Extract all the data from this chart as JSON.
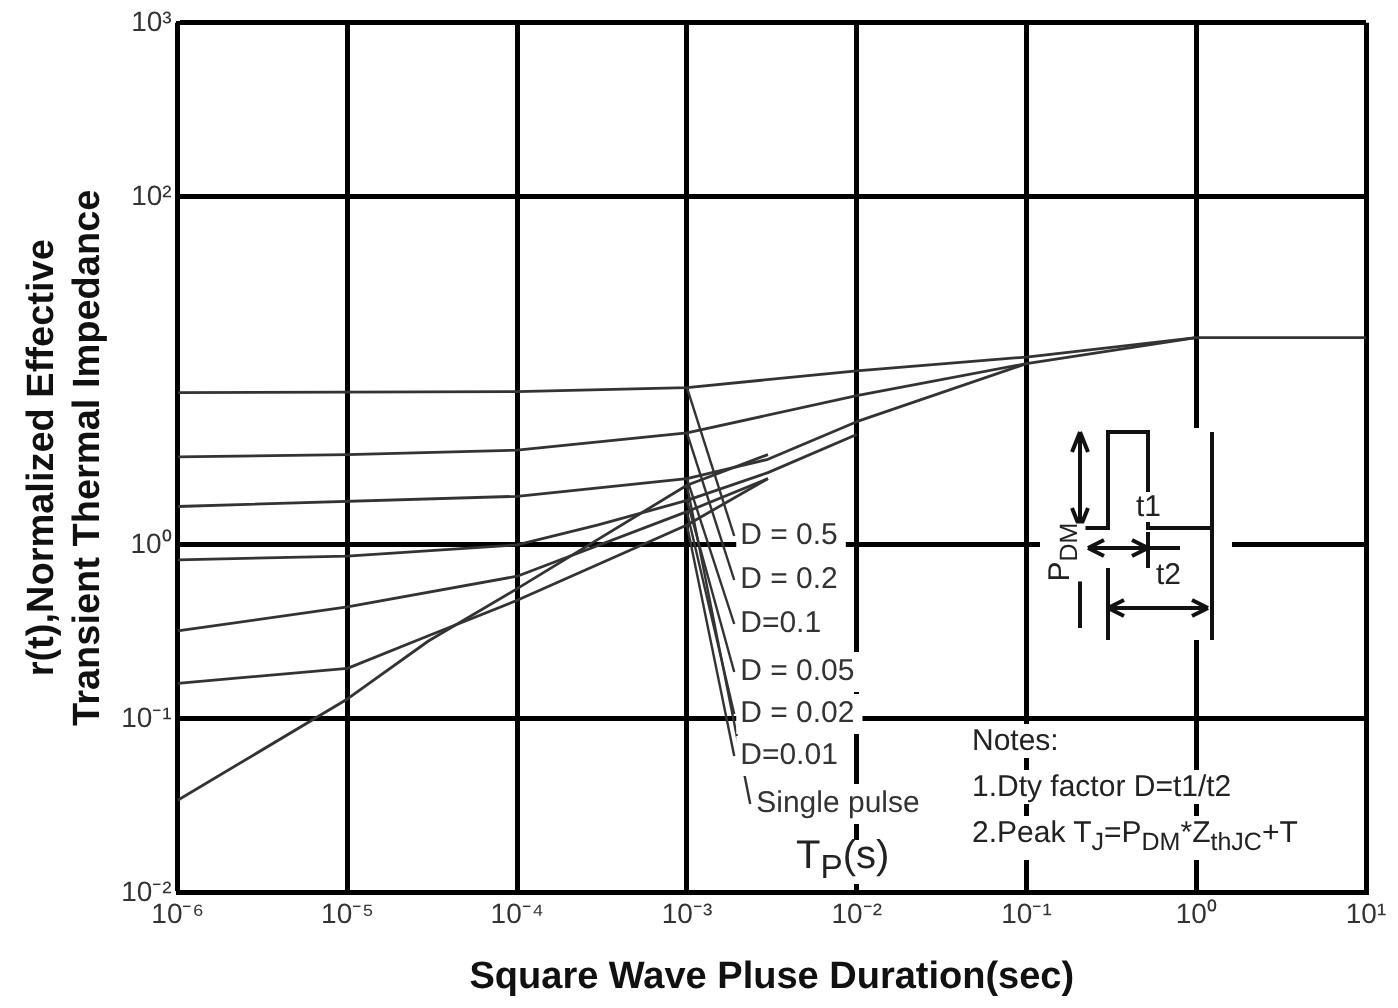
{
  "chart_data": {
    "type": "line",
    "xlabel": "Square Wave Pluse Duration(sec)",
    "ylabel": "r(t),Normalized Effective\nTransient Thermal Impedance",
    "log": "xy",
    "grid": true,
    "legend": false,
    "marker": "none",
    "line_style": "solid",
    "xlim": [
      1e-06,
      10
    ],
    "ylim": [
      0.01,
      1000
    ],
    "xticks": [
      {
        "value": 1e-06,
        "label": "10⁻⁶"
      },
      {
        "value": 1e-05,
        "label": "10⁻⁵"
      },
      {
        "value": 0.0001,
        "label": "10⁻⁴"
      },
      {
        "value": 0.001,
        "label": "10⁻³"
      },
      {
        "value": 0.01,
        "label": "10⁻²"
      },
      {
        "value": 0.1,
        "label": "10⁻¹"
      },
      {
        "value": 1,
        "label": "10⁰"
      },
      {
        "value": 10,
        "label": "10¹"
      }
    ],
    "yticks": [
      {
        "value": 0.01,
        "label": "10⁻²"
      },
      {
        "value": 0.1,
        "label": "10⁻¹"
      },
      {
        "value": 1,
        "label": "10⁰"
      },
      {
        "value": 100,
        "label": "10²"
      },
      {
        "value": 1000,
        "label": "10³"
      }
    ],
    "series": [
      {
        "name": "D = 0.5",
        "color": "#333333",
        "x": [
          1e-06,
          0.0001,
          0.001,
          0.01,
          0.1,
          1,
          10
        ],
        "values": [
          7.5,
          7.6,
          8.0,
          10,
          12,
          15.5,
          15.5
        ]
      },
      {
        "name": "D = 0.2",
        "color": "#333333",
        "x": [
          1e-06,
          1e-05,
          0.0001,
          0.001,
          0.01,
          0.1,
          1
        ],
        "values": [
          3.2,
          3.3,
          3.5,
          4.4,
          7.2,
          11,
          15.5
        ]
      },
      {
        "name": "D=0.1",
        "color": "#333333",
        "x": [
          1e-06,
          0.0001,
          0.001,
          0.003,
          0.01,
          0.1
        ],
        "values": [
          1.66,
          1.9,
          2.4,
          3.1,
          5.1,
          11
        ]
      },
      {
        "name": "D = 0.05",
        "color": "#333333",
        "x": [
          1e-06,
          1e-05,
          0.0001,
          0.0003,
          0.001,
          0.003,
          0.01
        ],
        "values": [
          0.82,
          0.86,
          1.0,
          1.3,
          1.8,
          2.6,
          4.3
        ]
      },
      {
        "name": "D = 0.02",
        "color": "#333333",
        "x": [
          1e-06,
          1e-05,
          0.0001,
          0.001,
          0.003
        ],
        "values": [
          0.32,
          0.44,
          0.66,
          1.55,
          2.4
        ]
      },
      {
        "name": "D=0.01",
        "color": "#333333",
        "x": [
          1e-06,
          1e-05,
          3e-05,
          0.0001,
          0.001,
          0.003
        ],
        "values": [
          0.16,
          0.195,
          0.3,
          0.48,
          1.3,
          2.4
        ]
      },
      {
        "name": "Single pulse",
        "color": "#333333",
        "x": [
          1e-06,
          1e-05,
          3e-05,
          0.0001,
          0.001,
          0.003
        ],
        "values": [
          0.034,
          0.13,
          0.28,
          0.56,
          2.2,
          3.3
        ]
      }
    ],
    "annotations": [
      "Notes:",
      "1.Dty factor D=t1/t2",
      "2.Peak T$_{J}$=P$_{DM}$*Z$_{thJC}$+T",
      "T$_{P}$(s)",
      "P$_{DM}$",
      "t1",
      "t2"
    ]
  }
}
